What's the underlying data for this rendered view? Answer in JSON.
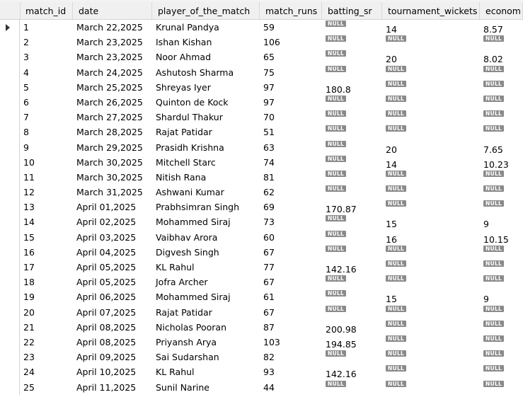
{
  "columns": [
    "match_id",
    "date",
    "player_of_the_match",
    "match_runs",
    "batting_sr",
    "tournament_wickets",
    "econom"
  ],
  "null_label": "NULL",
  "rows": [
    {
      "match_id": "1",
      "date": "March 22,2025",
      "player": "Krunal Pandya",
      "runs": "59",
      "sr": null,
      "wickets": "14",
      "economy": "8.57"
    },
    {
      "match_id": "2",
      "date": "March 23,2025",
      "player": "Ishan Kishan",
      "runs": "106",
      "sr": null,
      "wickets": null,
      "economy": null
    },
    {
      "match_id": "3",
      "date": "March 23,2025",
      "player": "Noor Ahmad",
      "runs": "65",
      "sr": null,
      "wickets": "20",
      "economy": "8.02"
    },
    {
      "match_id": "4",
      "date": "March 24,2025",
      "player": "Ashutosh Sharma",
      "runs": "75",
      "sr": null,
      "wickets": null,
      "economy": null
    },
    {
      "match_id": "5",
      "date": "March 25,2025",
      "player": "Shreyas Iyer",
      "runs": "97",
      "sr": "180.8",
      "wickets": null,
      "economy": null
    },
    {
      "match_id": "6",
      "date": "March 26,2025",
      "player": "Quinton de Kock",
      "runs": "97",
      "sr": null,
      "wickets": null,
      "economy": null
    },
    {
      "match_id": "7",
      "date": "March 27,2025",
      "player": "Shardul Thakur",
      "runs": "70",
      "sr": null,
      "wickets": null,
      "economy": null
    },
    {
      "match_id": "8",
      "date": "March 28,2025",
      "player": "Rajat Patidar",
      "runs": "51",
      "sr": null,
      "wickets": null,
      "economy": null
    },
    {
      "match_id": "9",
      "date": "March 29,2025",
      "player": "Prasidh Krishna",
      "runs": "63",
      "sr": null,
      "wickets": "20",
      "economy": "7.65"
    },
    {
      "match_id": "10",
      "date": "March 30,2025",
      "player": "Mitchell Starc",
      "runs": "74",
      "sr": null,
      "wickets": "14",
      "economy": "10.23"
    },
    {
      "match_id": "11",
      "date": "March 30,2025",
      "player": "Nitish Rana",
      "runs": "81",
      "sr": null,
      "wickets": null,
      "economy": null
    },
    {
      "match_id": "12",
      "date": "March 31,2025",
      "player": "Ashwani Kumar",
      "runs": "62",
      "sr": null,
      "wickets": null,
      "economy": null
    },
    {
      "match_id": "13",
      "date": "April 01,2025",
      "player": "Prabhsimran Singh",
      "runs": "69",
      "sr": "170.87",
      "wickets": null,
      "economy": null
    },
    {
      "match_id": "14",
      "date": "April 02,2025",
      "player": "Mohammed Siraj",
      "runs": "73",
      "sr": null,
      "wickets": "15",
      "economy": "9"
    },
    {
      "match_id": "15",
      "date": "April 03,2025",
      "player": "Vaibhav Arora",
      "runs": "60",
      "sr": null,
      "wickets": "16",
      "economy": "10.15"
    },
    {
      "match_id": "16",
      "date": "April 04,2025",
      "player": "Digvesh Singh",
      "runs": "67",
      "sr": null,
      "wickets": null,
      "economy": null
    },
    {
      "match_id": "17",
      "date": "April 05,2025",
      "player": "KL Rahul",
      "runs": "77",
      "sr": "142.16",
      "wickets": null,
      "economy": null
    },
    {
      "match_id": "18",
      "date": "April 05,2025",
      "player": "Jofra Archer",
      "runs": "67",
      "sr": null,
      "wickets": null,
      "economy": null
    },
    {
      "match_id": "19",
      "date": "April 06,2025",
      "player": "Mohammed Siraj",
      "runs": "61",
      "sr": null,
      "wickets": "15",
      "economy": "9"
    },
    {
      "match_id": "20",
      "date": "April 07,2025",
      "player": "Rajat Patidar",
      "runs": "67",
      "sr": null,
      "wickets": null,
      "economy": null
    },
    {
      "match_id": "21",
      "date": "April 08,2025",
      "player": "Nicholas Pooran",
      "runs": "87",
      "sr": "200.98",
      "wickets": null,
      "economy": null
    },
    {
      "match_id": "22",
      "date": "April 08,2025",
      "player": "Priyansh Arya",
      "runs": "103",
      "sr": "194.85",
      "wickets": null,
      "economy": null
    },
    {
      "match_id": "23",
      "date": "April 09,2025",
      "player": "Sai Sudarshan",
      "runs": "82",
      "sr": null,
      "wickets": null,
      "economy": null
    },
    {
      "match_id": "24",
      "date": "April 10,2025",
      "player": "KL Rahul",
      "runs": "93",
      "sr": "142.16",
      "wickets": null,
      "economy": null
    },
    {
      "match_id": "25",
      "date": "April 11,2025",
      "player": "Sunil Narine",
      "runs": "44",
      "sr": null,
      "wickets": null,
      "economy": null
    }
  ]
}
